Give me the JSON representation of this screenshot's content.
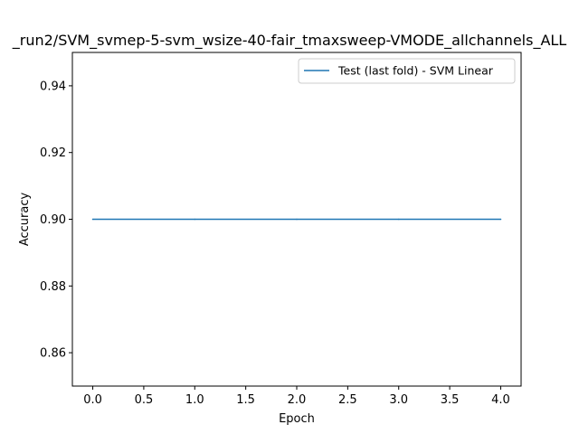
{
  "chart_data": {
    "type": "line",
    "title": "_run2/SVM_svmep-5-svm_wsize-40-fair_tmaxsweep-VMODE_allchannels_ALL",
    "xlabel": "Epoch",
    "ylabel": "Accuracy",
    "xlim": [
      -0.2,
      4.2
    ],
    "ylim": [
      0.85,
      0.95
    ],
    "xticks": [
      "0.0",
      "0.5",
      "1.0",
      "1.5",
      "2.0",
      "2.5",
      "3.0",
      "3.5",
      "4.0"
    ],
    "yticks": [
      "0.86",
      "0.88",
      "0.90",
      "0.92",
      "0.94"
    ],
    "legend_position": "top-right",
    "grid": false,
    "series": [
      {
        "name": "Test (last fold) - SVM Linear",
        "color": "#1f77b4",
        "x": [
          0,
          1,
          2,
          3,
          4
        ],
        "y": [
          0.9,
          0.9,
          0.9,
          0.9,
          0.9
        ]
      }
    ]
  }
}
